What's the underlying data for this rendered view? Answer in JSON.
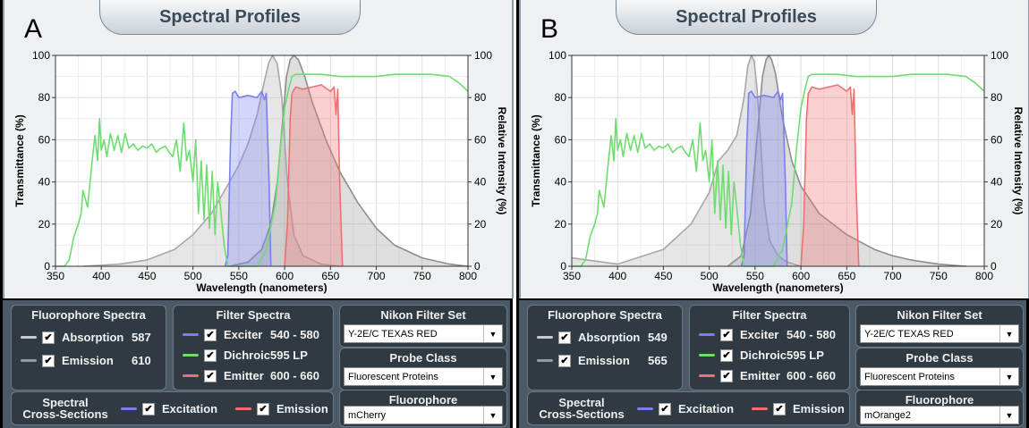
{
  "panels": [
    {
      "letter": "A",
      "title": "Spectral Profiles",
      "fluorophore_spectra": {
        "header": "Fluorophore Spectra",
        "absorption_label": "Absorption",
        "absorption_value": "587",
        "emission_label": "Emission",
        "emission_value": "610"
      },
      "filter_spectra": {
        "header": "Filter Spectra",
        "exciter_label": "Exciter",
        "exciter_value": "540 - 580",
        "dichroic_label": "Dichroic",
        "dichroic_value": "595 LP",
        "emitter_label": "Emitter",
        "emitter_value": "600 - 660"
      },
      "nikon_filter_set": {
        "header": "Nikon Filter Set",
        "value": "Y-2E/C TEXAS RED"
      },
      "probe_class": {
        "header": "Probe Class",
        "value": "Fluorescent Proteins"
      },
      "fluorophore": {
        "header": "Fluorophore",
        "value": "mCherry"
      },
      "cross_sections": {
        "label_line1": "Spectral",
        "label_line2": "Cross-Sections",
        "excitation_label": "Excitation",
        "emission_label": "Emission"
      }
    },
    {
      "letter": "B",
      "title": "Spectral Profiles",
      "fluorophore_spectra": {
        "header": "Fluorophore Spectra",
        "absorption_label": "Absorption",
        "absorption_value": "549",
        "emission_label": "Emission",
        "emission_value": "565"
      },
      "filter_spectra": {
        "header": "Filter Spectra",
        "exciter_label": "Exciter",
        "exciter_value": "540 - 580",
        "dichroic_label": "Dichroic",
        "dichroic_value": "595 LP",
        "emitter_label": "Emitter",
        "emitter_value": "600 - 660"
      },
      "nikon_filter_set": {
        "header": "Nikon Filter Set",
        "value": "Y-2E/C TEXAS RED"
      },
      "probe_class": {
        "header": "Probe Class",
        "value": "Fluorescent Proteins"
      },
      "fluorophore": {
        "header": "Fluorophore",
        "value": "mOrange2"
      },
      "cross_sections": {
        "label_line1": "Spectral",
        "label_line2": "Cross-Sections",
        "excitation_label": "Excitation",
        "emission_label": "Emission"
      }
    }
  ],
  "colors": {
    "exciter": "#7b7ff0",
    "dichroic": "#6fdc6f",
    "emitter": "#f07070",
    "absorption": "#b8b8b8",
    "emission": "#9a9a9a"
  },
  "chart_data": [
    {
      "type": "area",
      "xlabel": "Wavelength (nanometers)",
      "ylabel": "Transmittance (%)",
      "y2label": "Relative Intensity (%)",
      "xlim": [
        350,
        800
      ],
      "ylim": [
        0,
        100
      ],
      "xticks": [
        350,
        400,
        450,
        500,
        550,
        600,
        650,
        700,
        750,
        800
      ],
      "yticks": [
        0,
        20,
        40,
        60,
        80,
        100
      ],
      "grid": true,
      "series": [
        {
          "name": "Exciter",
          "x": [
            535,
            538,
            541,
            543,
            546,
            550,
            560,
            570,
            575,
            578,
            580,
            583,
            585
          ],
          "y": [
            0,
            5,
            60,
            82,
            83,
            80,
            81,
            80,
            83,
            79,
            82,
            40,
            0
          ]
        },
        {
          "name": "Dichroic",
          "x": [
            350,
            360,
            365,
            370,
            375,
            378,
            380,
            385,
            390,
            393,
            396,
            398,
            400,
            403,
            406,
            410,
            414,
            418,
            422,
            426,
            430,
            435,
            440,
            445,
            450,
            455,
            460,
            465,
            470,
            474,
            478,
            482,
            486,
            490,
            493,
            496,
            500,
            503,
            506,
            509,
            512,
            515,
            518,
            521,
            524,
            527,
            530,
            534,
            538,
            542,
            546,
            550,
            560,
            570,
            580,
            590,
            595,
            600,
            605,
            608,
            612,
            620,
            640,
            660,
            680,
            700,
            720,
            740,
            760,
            780,
            790,
            800
          ],
          "y": [
            0,
            0,
            3,
            14,
            20,
            25,
            36,
            28,
            50,
            62,
            50,
            70,
            55,
            60,
            52,
            63,
            55,
            62,
            54,
            63,
            56,
            58,
            55,
            57,
            56,
            58,
            54,
            56,
            57,
            54,
            52,
            60,
            45,
            68,
            50,
            55,
            40,
            60,
            25,
            50,
            22,
            48,
            18,
            45,
            15,
            40,
            28,
            10,
            0,
            0,
            0,
            0,
            0,
            0,
            8,
            30,
            55,
            75,
            85,
            90,
            91,
            91,
            91,
            90,
            90,
            90,
            91,
            91,
            91,
            90,
            87,
            83
          ]
        },
        {
          "name": "Emitter",
          "x": [
            600,
            603,
            606,
            608,
            612,
            620,
            630,
            640,
            650,
            654,
            656,
            658,
            660,
            663
          ],
          "y": [
            0,
            20,
            70,
            82,
            85,
            84,
            85,
            86,
            83,
            85,
            72,
            84,
            40,
            0
          ]
        },
        {
          "name": "Absorption",
          "x": [
            380,
            420,
            450,
            480,
            500,
            520,
            540,
            550,
            560,
            570,
            578,
            583,
            587,
            592,
            597,
            603,
            610,
            620,
            640,
            660
          ],
          "y": [
            0,
            1,
            3,
            8,
            15,
            25,
            40,
            48,
            58,
            72,
            88,
            97,
            100,
            96,
            80,
            40,
            15,
            5,
            1,
            0
          ]
        },
        {
          "name": "Emission",
          "x": [
            540,
            560,
            575,
            585,
            592,
            598,
            602,
            606,
            610,
            615,
            622,
            630,
            645,
            660,
            680,
            700,
            720,
            750,
            780,
            800
          ],
          "y": [
            0,
            2,
            8,
            20,
            40,
            70,
            90,
            98,
            100,
            98,
            90,
            78,
            60,
            45,
            30,
            18,
            10,
            4,
            1,
            0
          ]
        }
      ]
    },
    {
      "type": "area",
      "xlabel": "Wavelength (nanometers)",
      "ylabel": "Transmittance (%)",
      "y2label": "Relative Intensity (%)",
      "xlim": [
        350,
        800
      ],
      "ylim": [
        0,
        100
      ],
      "xticks": [
        350,
        400,
        450,
        500,
        550,
        600,
        650,
        700,
        750,
        800
      ],
      "yticks": [
        0,
        20,
        40,
        60,
        80,
        100
      ],
      "grid": true,
      "series": [
        {
          "name": "Exciter",
          "x": [
            535,
            538,
            541,
            543,
            546,
            550,
            560,
            570,
            575,
            578,
            580,
            583,
            585
          ],
          "y": [
            0,
            5,
            60,
            82,
            83,
            80,
            81,
            80,
            83,
            79,
            82,
            40,
            0
          ]
        },
        {
          "name": "Dichroic",
          "x": [
            350,
            360,
            365,
            370,
            375,
            378,
            380,
            385,
            390,
            393,
            396,
            398,
            400,
            403,
            406,
            410,
            414,
            418,
            422,
            426,
            430,
            435,
            440,
            445,
            450,
            455,
            460,
            465,
            470,
            474,
            478,
            482,
            486,
            490,
            493,
            496,
            500,
            503,
            506,
            509,
            512,
            515,
            518,
            521,
            524,
            527,
            530,
            534,
            538,
            542,
            546,
            550,
            560,
            570,
            580,
            590,
            595,
            600,
            605,
            608,
            612,
            620,
            640,
            660,
            680,
            700,
            720,
            740,
            760,
            780,
            790,
            800
          ],
          "y": [
            0,
            0,
            3,
            14,
            20,
            25,
            36,
            28,
            50,
            62,
            50,
            70,
            55,
            60,
            52,
            63,
            55,
            62,
            54,
            63,
            56,
            58,
            55,
            57,
            56,
            58,
            54,
            56,
            57,
            54,
            52,
            60,
            45,
            68,
            50,
            55,
            40,
            60,
            25,
            50,
            22,
            48,
            18,
            45,
            15,
            40,
            28,
            10,
            0,
            0,
            0,
            0,
            0,
            0,
            8,
            30,
            55,
            75,
            85,
            90,
            91,
            91,
            91,
            90,
            90,
            90,
            91,
            91,
            91,
            90,
            87,
            83
          ]
        },
        {
          "name": "Emitter",
          "x": [
            600,
            603,
            606,
            608,
            612,
            620,
            630,
            640,
            650,
            654,
            656,
            658,
            660,
            663
          ],
          "y": [
            0,
            20,
            70,
            82,
            85,
            84,
            85,
            86,
            83,
            85,
            72,
            84,
            40,
            0
          ]
        },
        {
          "name": "Absorption",
          "x": [
            350,
            400,
            450,
            480,
            500,
            510,
            520,
            530,
            538,
            542,
            546,
            549,
            552,
            556,
            560,
            566,
            575,
            585,
            600
          ],
          "y": [
            4,
            1,
            8,
            20,
            35,
            50,
            55,
            62,
            80,
            95,
            100,
            97,
            85,
            60,
            30,
            12,
            5,
            2,
            0
          ]
        },
        {
          "name": "Emission",
          "x": [
            520,
            535,
            545,
            552,
            558,
            562,
            565,
            568,
            572,
            580,
            590,
            600,
            620,
            650,
            680,
            700,
            720,
            750,
            780
          ],
          "y": [
            0,
            5,
            25,
            60,
            90,
            98,
            100,
            98,
            92,
            70,
            50,
            38,
            25,
            15,
            8,
            5,
            3,
            1,
            0
          ]
        }
      ]
    }
  ]
}
